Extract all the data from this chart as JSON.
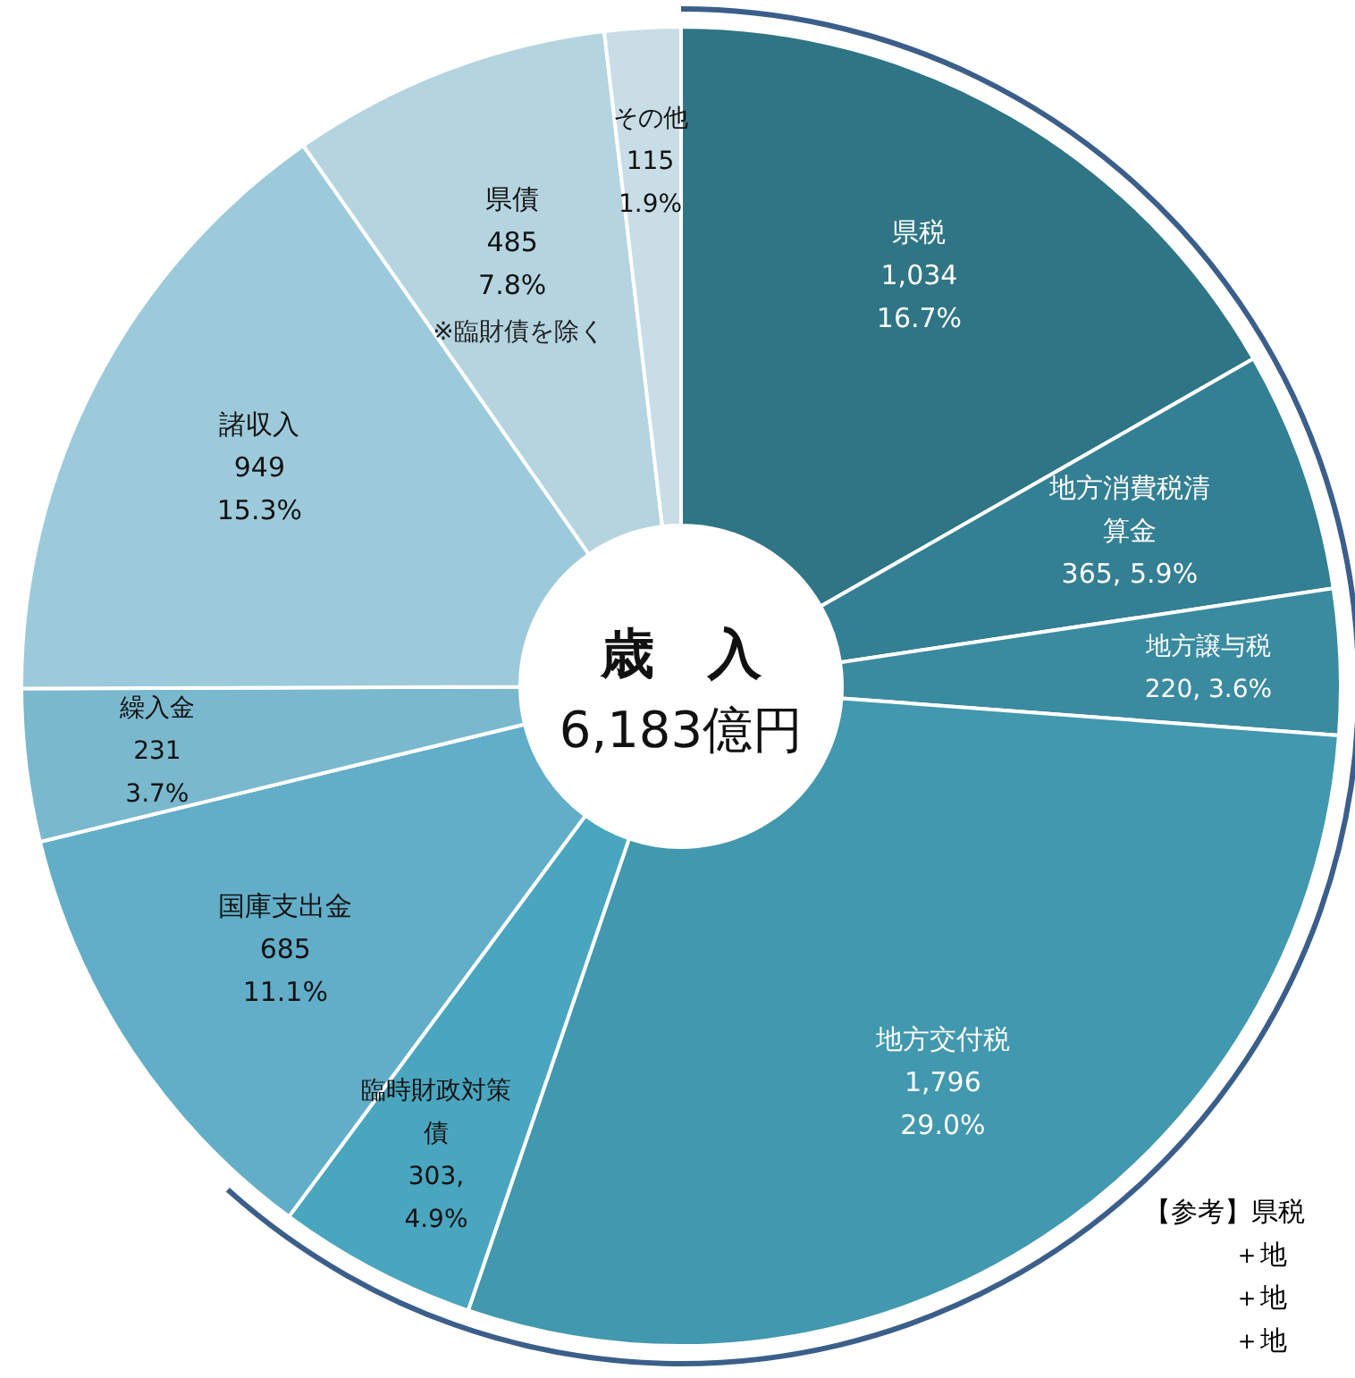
{
  "chart_data": {
    "type": "donut",
    "title": "歳　入",
    "subtitle": "6,183億円",
    "categories": [
      "県税",
      "地方消費税清算金",
      "地方譲与税",
      "地方交付税",
      "臨時財政対策債",
      "国庫支出金",
      "繰入金",
      "諸収入",
      "県債",
      "その他"
    ],
    "values": [
      1034,
      365,
      220,
      1796,
      303,
      685,
      231,
      949,
      485,
      115
    ],
    "value_labels": [
      "1,034\n16.7%",
      "365, 5.9%",
      "220, 3.6%",
      "1,796\n29.0%",
      "303,\n4.9%",
      "685\n11.1%",
      "231\n3.7%",
      "949\n15.3%",
      "485\n7.8%",
      "115\n1.9%"
    ],
    "colors": [
      "#2f7585",
      "#337f93",
      "#3a8ba0",
      "#4298ae",
      "#4aa5bf",
      "#62aec8",
      "#7ab8ce",
      "#9ccadb",
      "#b4d4e0",
      "#c8dde6"
    ],
    "annotations": [
      "※臨財債を除く",
      "【参考】県税",
      "＋地",
      "＋地",
      "＋地"
    ]
  }
}
